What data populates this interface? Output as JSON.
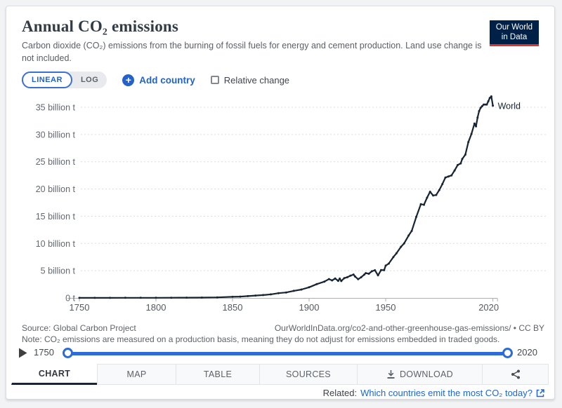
{
  "header": {
    "title": "Annual CO₂ emissions",
    "subtitle": "Carbon dioxide (CO₂) emissions from the burning of fossil fuels for energy and cement production. Land use change is not included.",
    "logo": {
      "line1": "Our World",
      "line2": "in Data",
      "bg": "#002147",
      "stripe": "#d6382d"
    }
  },
  "controls": {
    "linear_label": "LINEAR",
    "log_label": "LOG",
    "add_country_label": "Add country",
    "relative_change_label": "Relative change",
    "accent_blue": "#2462c9"
  },
  "chart_data": {
    "type": "line",
    "title": "Annual CO₂ emissions",
    "xlabel": "",
    "ylabel": "",
    "x_axis": {
      "ticks": [
        1750,
        1800,
        1850,
        1900,
        1950,
        2020
      ],
      "range": [
        1750,
        2023
      ]
    },
    "y_axis": {
      "ticks": [
        {
          "value": 0,
          "label": "0 t"
        },
        {
          "value": 5,
          "label": "5 billion t"
        },
        {
          "value": 10,
          "label": "10 billion t"
        },
        {
          "value": 15,
          "label": "15 billion t"
        },
        {
          "value": 20,
          "label": "20 billion t"
        },
        {
          "value": 25,
          "label": "25 billion t"
        },
        {
          "value": 30,
          "label": "30 billion t"
        },
        {
          "value": 35,
          "label": "35 billion t"
        }
      ],
      "range": [
        0,
        37
      ],
      "unit": "billion tonnes"
    },
    "grid": "horizontal dashed",
    "legend_position": "end-of-line label",
    "series": [
      {
        "name": "World",
        "color": "#172433",
        "points": [
          [
            1750,
            0.01
          ],
          [
            1760,
            0.01
          ],
          [
            1770,
            0.01
          ],
          [
            1780,
            0.02
          ],
          [
            1790,
            0.02
          ],
          [
            1800,
            0.03
          ],
          [
            1810,
            0.04
          ],
          [
            1820,
            0.05
          ],
          [
            1830,
            0.07
          ],
          [
            1840,
            0.1
          ],
          [
            1850,
            0.2
          ],
          [
            1855,
            0.25
          ],
          [
            1860,
            0.34
          ],
          [
            1865,
            0.44
          ],
          [
            1870,
            0.53
          ],
          [
            1875,
            0.66
          ],
          [
            1880,
            0.87
          ],
          [
            1885,
            1.0
          ],
          [
            1890,
            1.3
          ],
          [
            1895,
            1.55
          ],
          [
            1900,
            1.95
          ],
          [
            1905,
            2.54
          ],
          [
            1910,
            3.0
          ],
          [
            1913,
            3.46
          ],
          [
            1915,
            3.22
          ],
          [
            1917,
            3.56
          ],
          [
            1919,
            3.14
          ],
          [
            1920,
            3.55
          ],
          [
            1921,
            3.1
          ],
          [
            1923,
            3.64
          ],
          [
            1925,
            3.81
          ],
          [
            1927,
            4.08
          ],
          [
            1929,
            4.3
          ],
          [
            1930,
            3.94
          ],
          [
            1932,
            3.43
          ],
          [
            1934,
            3.8
          ],
          [
            1936,
            4.28
          ],
          [
            1937,
            4.56
          ],
          [
            1939,
            4.44
          ],
          [
            1941,
            4.9
          ],
          [
            1943,
            5.08
          ],
          [
            1945,
            4.15
          ],
          [
            1947,
            5.12
          ],
          [
            1949,
            5.1
          ],
          [
            1950,
            5.93
          ],
          [
            1952,
            6.3
          ],
          [
            1955,
            7.5
          ],
          [
            1957,
            8.18
          ],
          [
            1960,
            9.39
          ],
          [
            1962,
            10.0
          ],
          [
            1965,
            11.47
          ],
          [
            1967,
            12.3
          ],
          [
            1970,
            14.9
          ],
          [
            1973,
            17.2
          ],
          [
            1975,
            17.1
          ],
          [
            1977,
            18.4
          ],
          [
            1979,
            19.5
          ],
          [
            1981,
            18.8
          ],
          [
            1983,
            18.9
          ],
          [
            1985,
            19.8
          ],
          [
            1987,
            20.9
          ],
          [
            1989,
            22.1
          ],
          [
            1991,
            22.3
          ],
          [
            1993,
            22.5
          ],
          [
            1995,
            23.4
          ],
          [
            1997,
            24.4
          ],
          [
            1999,
            24.7
          ],
          [
            2000,
            25.5
          ],
          [
            2002,
            26.3
          ],
          [
            2004,
            28.6
          ],
          [
            2006,
            30.1
          ],
          [
            2008,
            32.0
          ],
          [
            2009,
            31.5
          ],
          [
            2010,
            33.1
          ],
          [
            2011,
            34.3
          ],
          [
            2012,
            34.9
          ],
          [
            2013,
            35.2
          ],
          [
            2014,
            35.5
          ],
          [
            2015,
            35.5
          ],
          [
            2016,
            35.5
          ],
          [
            2017,
            36.1
          ],
          [
            2018,
            36.7
          ],
          [
            2019,
            37.0
          ],
          [
            2020,
            35.3
          ]
        ]
      }
    ]
  },
  "footer": {
    "source": "Source: Global Carbon Project",
    "attribution": "OurWorldInData.org/co2-and-other-greenhouse-gas-emissions/ • CC BY",
    "note": "Note: CO₂ emissions are measured on a production basis, meaning they do not adjust for emissions embedded in traded goods."
  },
  "timeline": {
    "start_year": "1750",
    "end_year": "2020",
    "track_color": "#2d6bd8"
  },
  "tabs": {
    "items": [
      {
        "label": "CHART",
        "active": true
      },
      {
        "label": "MAP"
      },
      {
        "label": "TABLE"
      },
      {
        "label": "SOURCES"
      },
      {
        "label": "DOWNLOAD"
      }
    ]
  },
  "related": {
    "prefix": "Related:",
    "link_text": "Which countries emit the most CO₂ today?"
  }
}
